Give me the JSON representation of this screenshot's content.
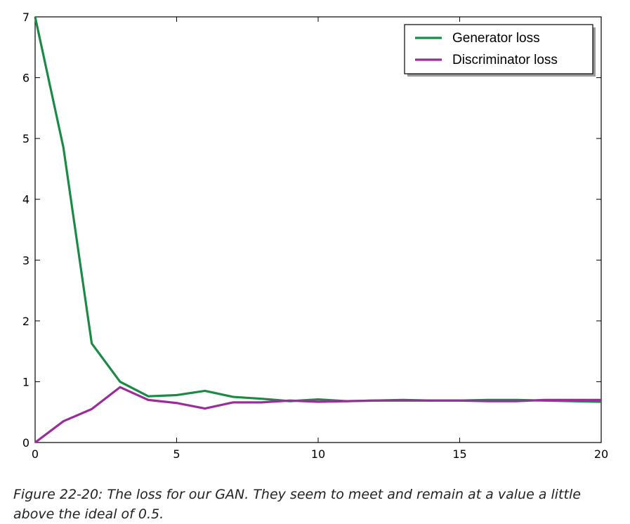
{
  "chart_data": {
    "type": "line",
    "x": [
      0,
      1,
      2,
      3,
      4,
      5,
      6,
      7,
      8,
      9,
      10,
      11,
      12,
      13,
      14,
      15,
      16,
      17,
      18,
      19,
      20
    ],
    "series": [
      {
        "name": "Generator loss",
        "color": "#1b8a45",
        "values": [
          7.0,
          4.85,
          1.63,
          1.0,
          0.76,
          0.78,
          0.85,
          0.75,
          0.72,
          0.68,
          0.71,
          0.68,
          0.69,
          0.7,
          0.69,
          0.69,
          0.7,
          0.7,
          0.69,
          0.68,
          0.67
        ]
      },
      {
        "name": "Discriminator loss",
        "color": "#9b2d9b",
        "values": [
          0.0,
          0.35,
          0.55,
          0.91,
          0.7,
          0.65,
          0.56,
          0.66,
          0.66,
          0.69,
          0.67,
          0.68,
          0.69,
          0.69,
          0.69,
          0.69,
          0.68,
          0.68,
          0.7,
          0.7,
          0.7
        ]
      }
    ],
    "xlim": [
      0,
      20
    ],
    "ylim": [
      0,
      7
    ],
    "xticks": [
      "0",
      "5",
      "10",
      "15",
      "20"
    ],
    "yticks": [
      "0",
      "1",
      "2",
      "3",
      "4",
      "5",
      "6",
      "7"
    ],
    "legend_position": "top-right",
    "grid": false
  },
  "caption": "Figure 22-20: The loss for our GAN. They seem to meet and remain at a value a little above the ideal of 0.5."
}
